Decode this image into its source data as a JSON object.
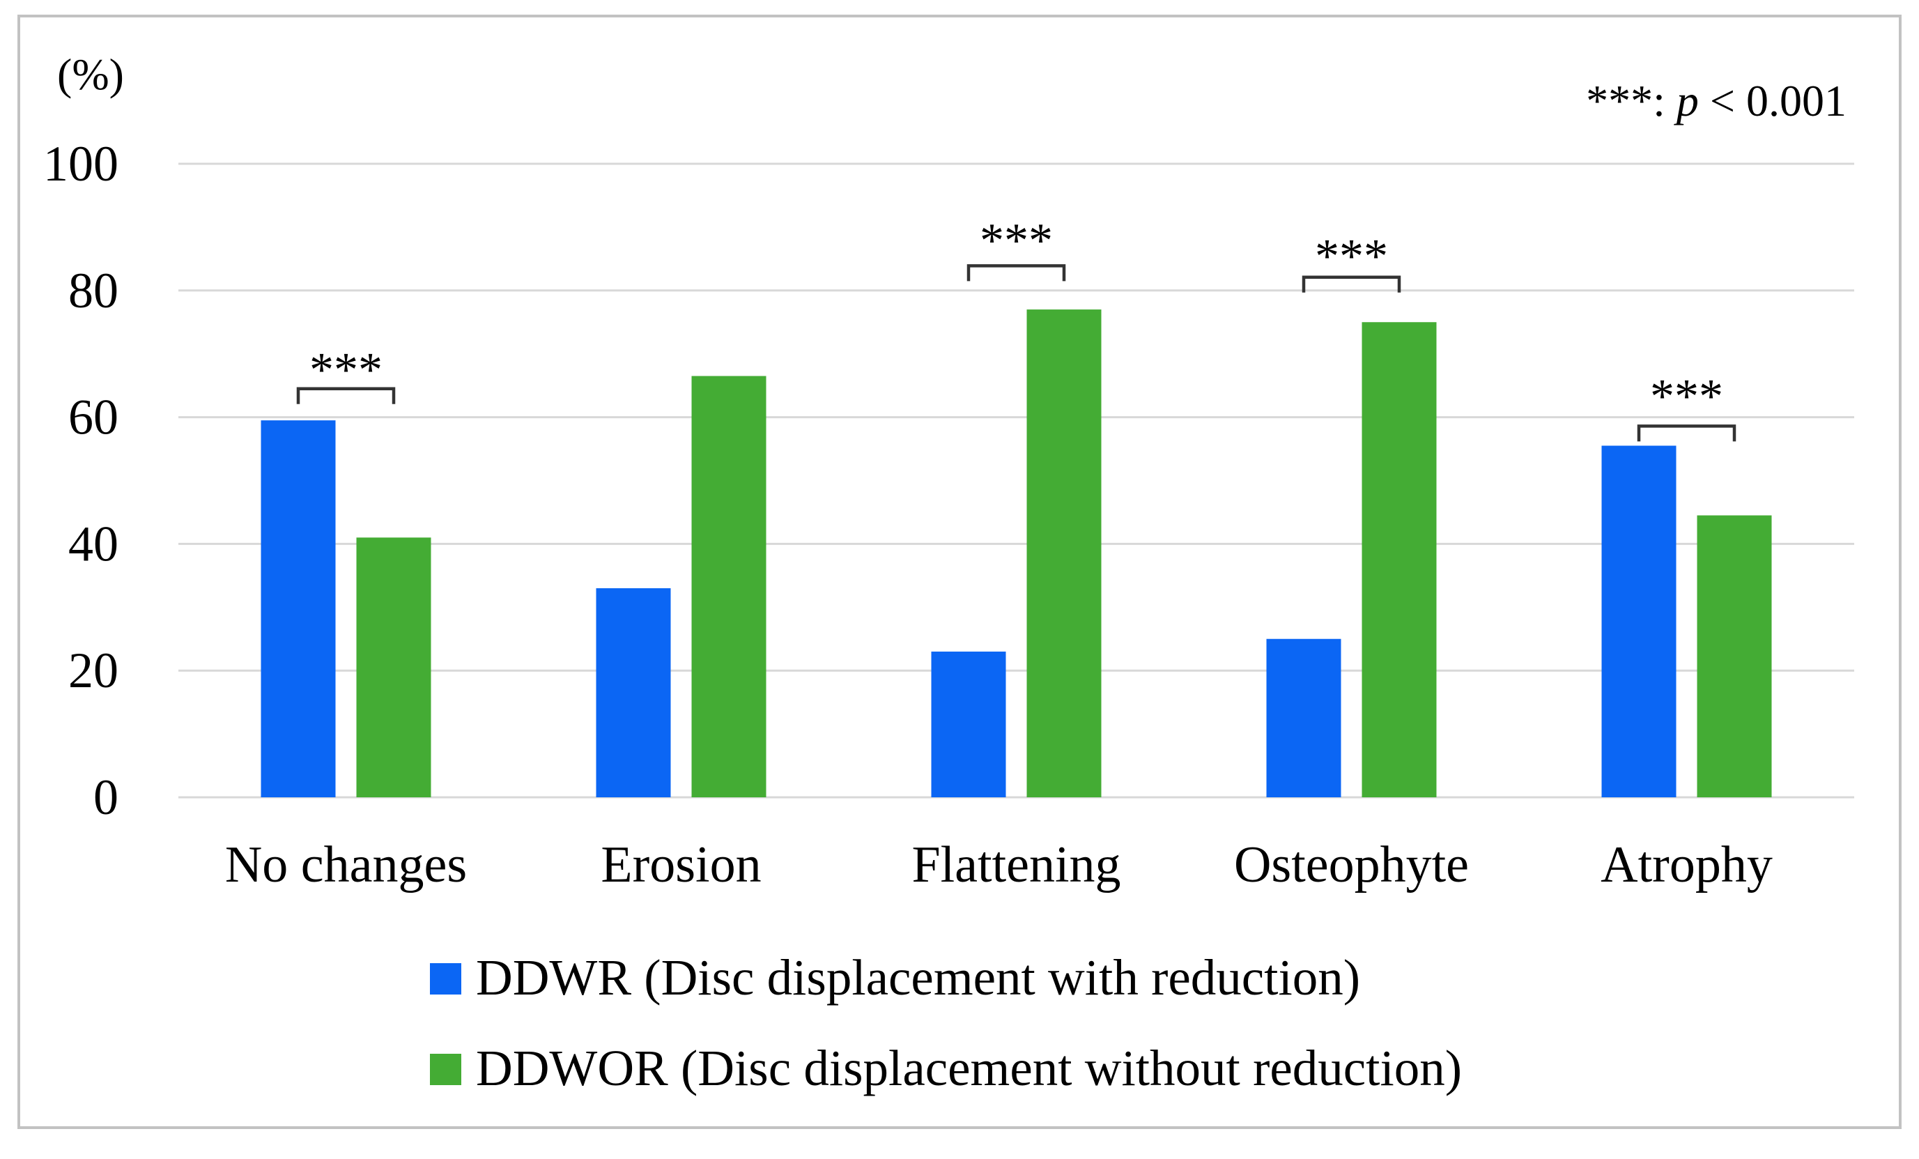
{
  "figure": {
    "border_color": "#c2c2c2",
    "background": "#ffffff"
  },
  "chart_data": {
    "type": "bar",
    "title": "",
    "ylabel": "(%)",
    "xlabel": "",
    "categories": [
      "No changes",
      "Erosion",
      "Flattening",
      "Osteophyte",
      "Atrophy"
    ],
    "series": [
      {
        "name": "DDWR (Disc displacement with reduction)",
        "color": "#0b66f4",
        "values": [
          59.5,
          33,
          23,
          25,
          55.5
        ]
      },
      {
        "name": "DDWOR (Disc displacement without reduction)",
        "color": "#44ac34",
        "values": [
          41,
          66.5,
          77,
          75,
          44.5
        ]
      }
    ],
    "ylim": [
      0,
      100
    ],
    "yticks": [
      0,
      20,
      40,
      60,
      80,
      100
    ],
    "grid": "horizontal",
    "gridline_color": "#d8d8d8",
    "legend_position": "bottom-left",
    "significance": {
      "note": {
        "prefix": "***: ",
        "p": "p",
        "suffix": " < 0.001"
      },
      "marker": "***",
      "bracket_color": "#333333",
      "pairs": [
        {
          "category": "No changes",
          "category_index": 0,
          "label": "***",
          "bracket_y": 64.5,
          "stars_y": 68.6
        },
        {
          "category": "Flattening",
          "category_index": 2,
          "label": "***",
          "bracket_y": 83.9,
          "stars_y": 89.0
        },
        {
          "category": "Osteophyte",
          "category_index": 3,
          "label": "***",
          "bracket_y": 82.1,
          "stars_y": 86.5
        },
        {
          "category": "Atrophy",
          "category_index": 4,
          "label": "***",
          "bracket_y": 58.6,
          "stars_y": 64.4
        }
      ]
    }
  }
}
